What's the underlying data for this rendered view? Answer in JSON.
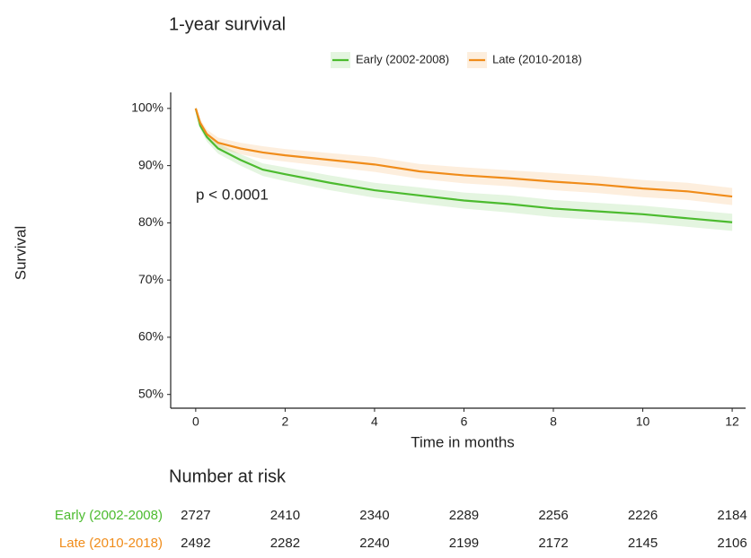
{
  "chart_data": {
    "type": "survival",
    "title": "1-year survival",
    "x_label": "Time in months",
    "y_label": "Survival",
    "x": [
      0,
      0.1,
      0.25,
      0.5,
      1,
      1.5,
      2,
      3,
      4,
      5,
      6,
      7,
      8,
      9,
      10,
      11,
      12
    ],
    "series": [
      {
        "name": "Early (2002-2008)",
        "color": "#4cbb2f",
        "values": [
          100,
          97,
          95,
          93,
          91,
          89.3,
          88.5,
          87,
          85.7,
          84.8,
          83.9,
          83.3,
          82.5,
          82,
          81.5,
          80.8,
          80.1
        ],
        "lower": [
          100,
          96.4,
          94.2,
          92.1,
          90,
          88.2,
          87.3,
          85.7,
          84.4,
          83.4,
          82.5,
          81.8,
          81,
          80.5,
          80,
          79.3,
          78.6
        ],
        "upper": [
          100,
          97.6,
          95.8,
          93.9,
          92,
          90.4,
          89.7,
          88.3,
          87,
          86.2,
          85.3,
          84.8,
          84,
          83.5,
          83,
          82.3,
          81.6
        ]
      },
      {
        "name": "Late (2010-2018)",
        "color": "#f08c1a",
        "values": [
          100,
          97.5,
          95.5,
          94,
          93,
          92.3,
          91.8,
          91,
          90.2,
          89,
          88.3,
          87.8,
          87.2,
          86.7,
          86,
          85.5,
          84.6
        ],
        "lower": [
          100,
          96.9,
          94.7,
          93.1,
          92,
          91.2,
          90.7,
          89.8,
          88.9,
          87.7,
          86.9,
          86.4,
          85.7,
          85.2,
          84.5,
          84,
          83.1
        ],
        "upper": [
          100,
          98.1,
          96.3,
          94.9,
          94,
          93.4,
          92.9,
          92.2,
          91.5,
          90.3,
          89.7,
          89.2,
          88.7,
          88.2,
          87.5,
          87,
          86.1
        ]
      }
    ],
    "xlim": [
      -0.56,
      12.3
    ],
    "ylim": [
      47.6,
      102.8
    ],
    "xticks": [
      0,
      2,
      4,
      6,
      8,
      10,
      12
    ],
    "yticks": [
      {
        "value": 50,
        "label": "50%"
      },
      {
        "value": 60,
        "label": "60%"
      },
      {
        "value": 70,
        "label": "70%"
      },
      {
        "value": 80,
        "label": "80%"
      },
      {
        "value": 90,
        "label": "90%"
      },
      {
        "value": 100,
        "label": "100%"
      }
    ],
    "annotation": "p < 0.0001",
    "legend": "top"
  },
  "risk_table": {
    "title": "Number at risk",
    "rows": [
      {
        "name": "Early (2002-2008)",
        "color": "#4cbb2f",
        "values": [
          2727,
          2410,
          2340,
          2289,
          2256,
          2226,
          2184
        ]
      },
      {
        "name": "Late (2010-2018)",
        "color": "#f08c1a",
        "values": [
          2492,
          2282,
          2240,
          2199,
          2172,
          2145,
          2106
        ]
      }
    ]
  }
}
